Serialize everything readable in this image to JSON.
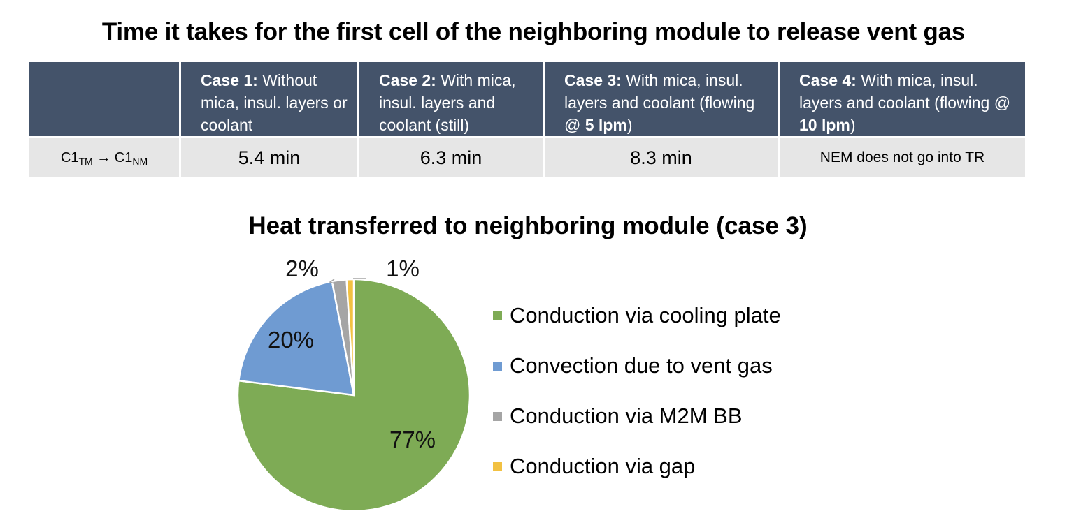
{
  "table": {
    "title": "Time it takes for the first cell of the neighboring module to release vent gas",
    "headers": [
      {
        "bold": "",
        "rest": ""
      },
      {
        "bold": "Case 1:",
        "rest": " Without mica, insul. layers or coolant"
      },
      {
        "bold": "Case 2:",
        "rest": " With mica, insul. layers and coolant (still)"
      },
      {
        "bold": "Case 3:",
        "rest": " With mica, insul. layers and coolant (flowing @ ",
        "bold2": "5 lpm",
        "tail": ")"
      },
      {
        "bold": "Case 4:",
        "rest": " With mica, insul. layers and coolant (flowing @ ",
        "bold2": "10 lpm",
        "tail": ")"
      }
    ],
    "row": {
      "label_main1": "C1",
      "label_sub1": "TM",
      "arrow": " → ",
      "label_main2": "C1",
      "label_sub2": "NM",
      "values": [
        "5.4 min",
        "6.3 min",
        "8.3 min",
        "NEM does not go into TR"
      ]
    }
  },
  "chart_data": {
    "type": "pie",
    "title": "Heat transferred to neighboring module (case 3)",
    "labels": [
      "Conduction via cooling plate",
      "Convection due to vent gas",
      "Conduction via M2M BB",
      "Conduction via gap"
    ],
    "values": [
      77,
      20,
      2,
      1
    ],
    "data_labels": [
      "77%",
      "20%",
      "2%",
      "1%"
    ],
    "colors": [
      "#7EAB55",
      "#6F9BD2",
      "#A5A5A5",
      "#F2C142"
    ],
    "legend_position": "right",
    "start_angle_deg": 0,
    "direction": "clockwise"
  }
}
